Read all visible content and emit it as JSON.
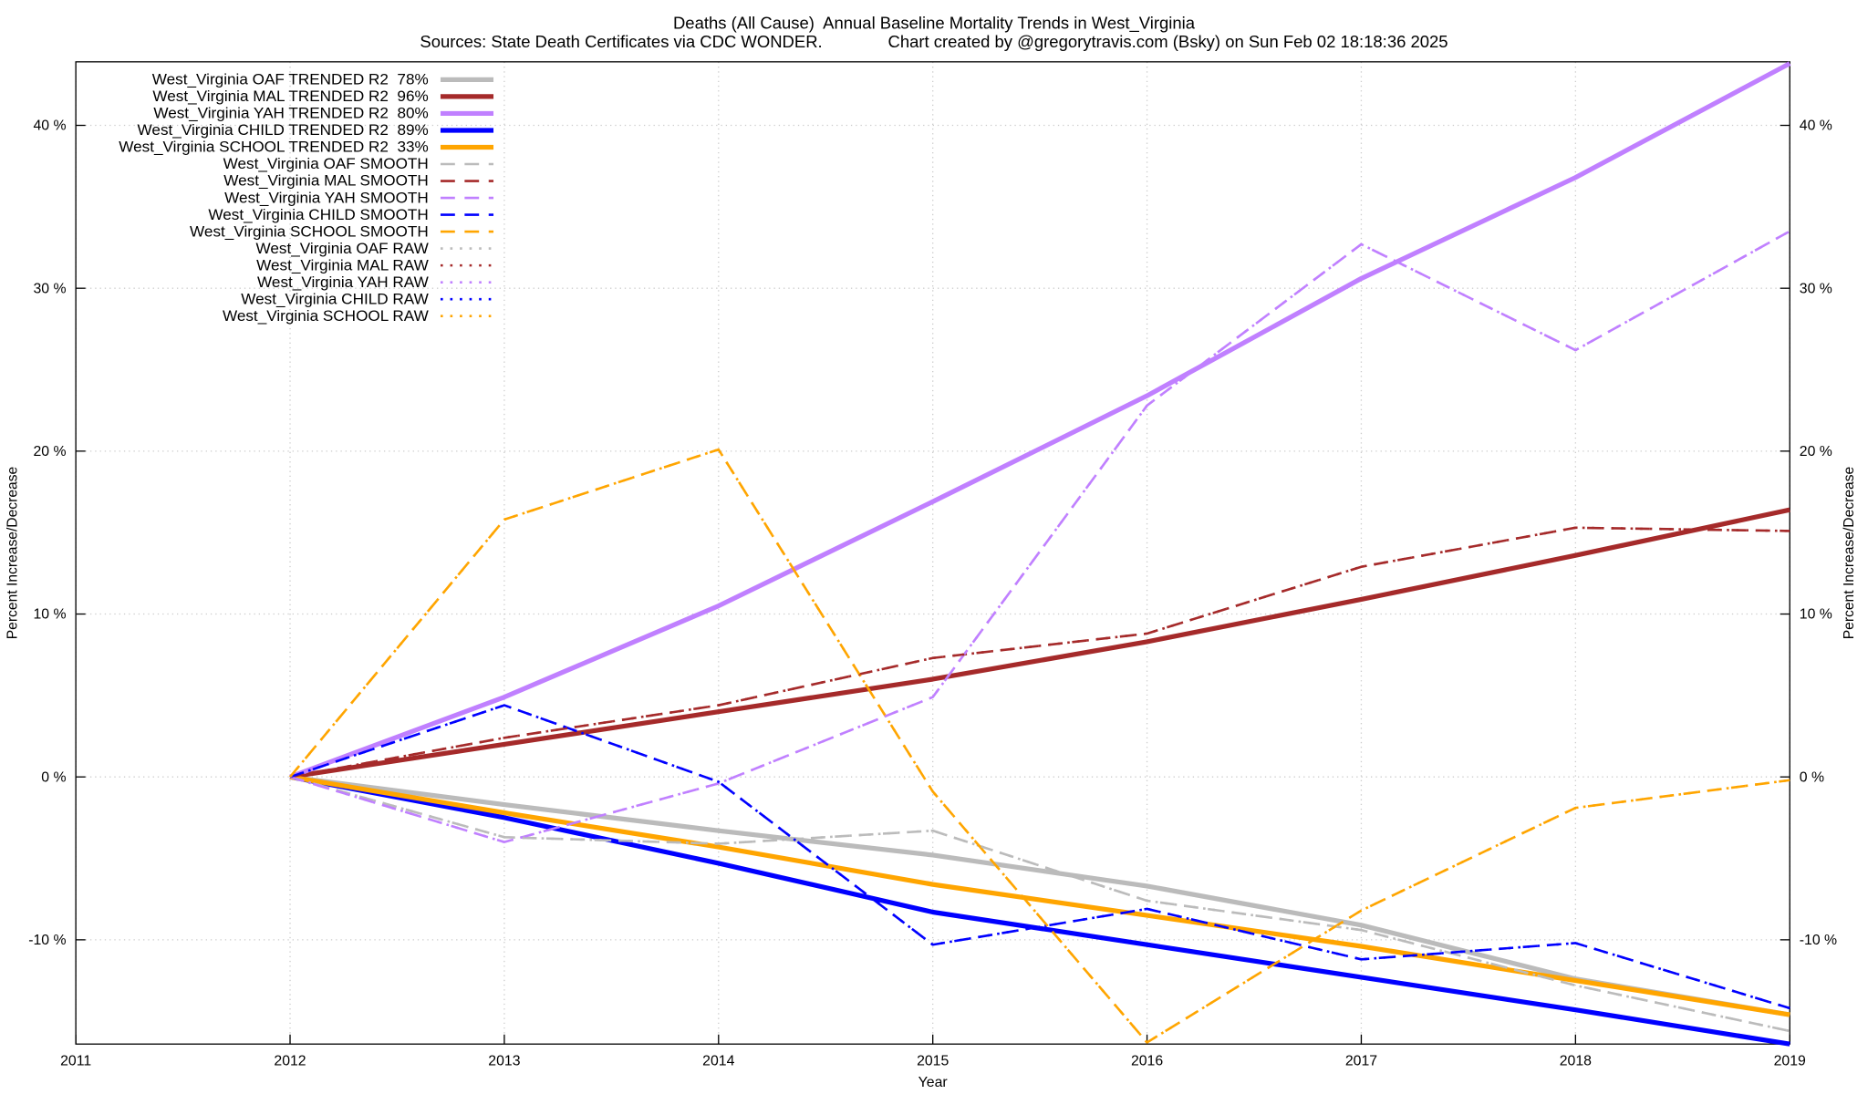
{
  "chart_data": {
    "type": "line",
    "title": "Deaths (All Cause)  Annual Baseline Mortality Trends in West_Virginia",
    "subtitle": "Sources: State Death Certificates via CDC WONDER.              Chart created by @gregorytravis.com (Bsky) on Sun Feb 02 18:18:36 2025",
    "x_label": "Year",
    "y_label": "Percent Increase/Decrease",
    "x": [
      2012,
      2013,
      2014,
      2015,
      2016,
      2017,
      2018,
      2019
    ],
    "xlim": [
      2011,
      2019
    ],
    "xticks": [
      2011,
      2012,
      2013,
      2014,
      2015,
      2016,
      2017,
      2018,
      2019
    ],
    "ylim": [
      -16.4,
      43.9
    ],
    "yticks": [
      {
        "value": -10,
        "label": "-10 %"
      },
      {
        "value": 0,
        "label": "0 %"
      },
      {
        "value": 10,
        "label": "10 %"
      },
      {
        "value": 20,
        "label": "20 %"
      },
      {
        "value": 30,
        "label": "30 %"
      },
      {
        "value": 40,
        "label": "40 %"
      }
    ],
    "grid": true,
    "legend": "top-left",
    "series": [
      {
        "name": "West_Virginia OAF TRENDED R2  78%",
        "color": "#bbbbbb",
        "style": "solid",
        "values": [
          0,
          -1.7,
          -3.3,
          -4.8,
          -6.7,
          -9.1,
          -12.4,
          -14.6
        ]
      },
      {
        "name": "West_Virginia MAL TRENDED R2  96%",
        "color": "#a52a2a",
        "style": "solid",
        "values": [
          0,
          2.0,
          4.0,
          6.0,
          8.3,
          10.9,
          13.6,
          16.4
        ]
      },
      {
        "name": "West_Virginia YAH TRENDED R2  80%",
        "color": "#c080ff",
        "style": "solid",
        "values": [
          0,
          4.9,
          10.5,
          16.9,
          23.4,
          30.6,
          36.8,
          43.8
        ]
      },
      {
        "name": "West_Virginia CHILD TRENDED R2  89%",
        "color": "#0000ff",
        "style": "solid",
        "values": [
          0,
          -2.5,
          -5.3,
          -8.3,
          -10.3,
          -12.3,
          -14.3,
          -16.4
        ]
      },
      {
        "name": "West_Virginia SCHOOL TRENDED R2  33%",
        "color": "#ffa500",
        "style": "solid",
        "values": [
          0,
          -2.2,
          -4.3,
          -6.6,
          -8.5,
          -10.4,
          -12.5,
          -14.6
        ]
      },
      {
        "name": "West_Virginia OAF SMOOTH",
        "color": "#bbbbbb",
        "style": "dashed",
        "values": [
          0,
          -3.7,
          -4.1,
          -3.3,
          -7.6,
          -9.4,
          -12.8,
          -15.6
        ]
      },
      {
        "name": "West_Virginia MAL SMOOTH",
        "color": "#a52a2a",
        "style": "dashed",
        "values": [
          0,
          2.4,
          4.4,
          7.3,
          8.8,
          12.9,
          15.3,
          15.1
        ]
      },
      {
        "name": "West_Virginia YAH SMOOTH",
        "color": "#c080ff",
        "style": "dashed",
        "values": [
          0,
          -4.0,
          -0.4,
          4.9,
          22.8,
          32.7,
          26.2,
          33.5
        ]
      },
      {
        "name": "West_Virginia CHILD SMOOTH",
        "color": "#0000ff",
        "style": "dashed",
        "values": [
          0,
          4.4,
          -0.3,
          -10.3,
          -8.1,
          -11.2,
          -10.2,
          -14.2
        ]
      },
      {
        "name": "West_Virginia SCHOOL SMOOTH",
        "color": "#ffa500",
        "style": "dashed",
        "values": [
          0,
          15.8,
          20.1,
          -0.9,
          -16.3,
          -8.2,
          -1.9,
          -0.2
        ]
      },
      {
        "name": "West_Virginia OAF RAW",
        "color": "#bbbbbb",
        "style": "dotted",
        "values": [
          0,
          -3.7,
          -4.1,
          -3.3,
          -7.6,
          -9.4,
          -12.8,
          -15.6
        ]
      },
      {
        "name": "West_Virginia MAL RAW",
        "color": "#a52a2a",
        "style": "dotted",
        "values": [
          0,
          2.4,
          4.4,
          7.3,
          8.8,
          12.9,
          15.3,
          15.1
        ]
      },
      {
        "name": "West_Virginia YAH RAW",
        "color": "#c080ff",
        "style": "dotted",
        "values": [
          0,
          -4.0,
          -0.4,
          4.9,
          22.8,
          32.7,
          26.2,
          33.5
        ]
      },
      {
        "name": "West_Virginia CHILD RAW",
        "color": "#0000ff",
        "style": "dotted",
        "values": [
          0,
          4.4,
          -0.3,
          -10.3,
          -8.1,
          -11.2,
          -10.2,
          -14.2
        ]
      },
      {
        "name": "West_Virginia SCHOOL RAW",
        "color": "#ffa500",
        "style": "dotted",
        "values": [
          0,
          15.8,
          20.1,
          -0.9,
          -16.3,
          -8.2,
          -1.9,
          -0.2
        ]
      }
    ]
  }
}
